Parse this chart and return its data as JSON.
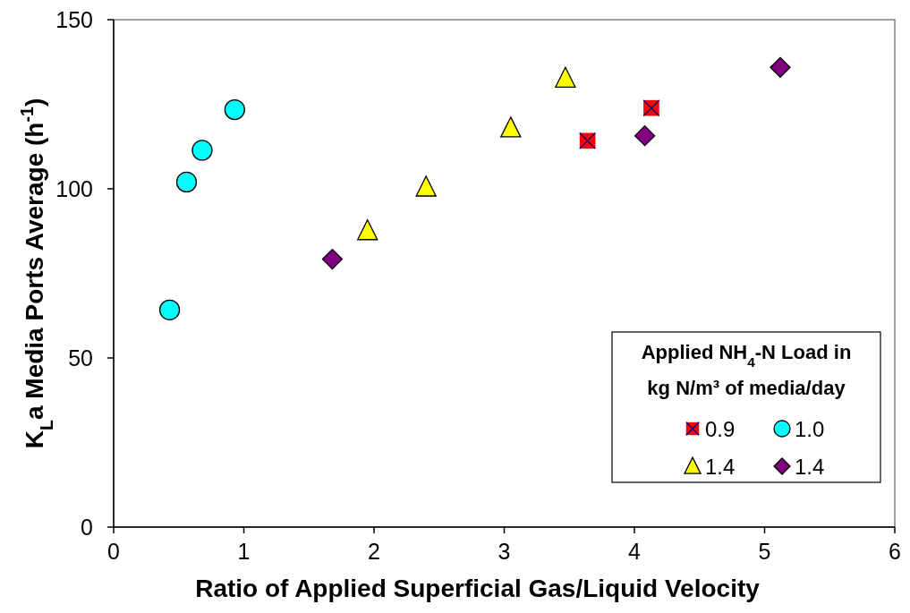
{
  "chart_data": {
    "type": "scatter",
    "xlabel": "Ratio of Applied Superficial Gas/Liquid Velocity",
    "ylabel": "K$_{L}$a Media Ports Average (h$^{-1}$)",
    "legend_title": "Applied NH$_{4}$-N Load in\nkg N/m³ of media/day",
    "xlim": [
      0,
      6
    ],
    "xticks": [
      0,
      1,
      2,
      3,
      4,
      5,
      6
    ],
    "ylim": [
      0,
      150
    ],
    "yticks": [
      0,
      50,
      100,
      150
    ],
    "grid": false,
    "legend": "bottom right",
    "series": [
      {
        "name": "0.9",
        "color": "#ff0000",
        "marker": "square",
        "x": [
          3.64,
          4.13
        ],
        "values": [
          114.2,
          123.9
        ]
      },
      {
        "name": "1.0",
        "color": "#00ffff",
        "marker": "circle",
        "x": [
          0.43,
          0.56,
          0.68,
          0.93
        ],
        "values": [
          64.2,
          102.0,
          111.4,
          123.4
        ]
      },
      {
        "name": "1.4",
        "color": "#ffff00",
        "marker": "triangle",
        "x": [
          1.95,
          2.4,
          3.05,
          3.47
        ],
        "values": [
          87.6,
          100.5,
          118.0,
          132.7
        ]
      },
      {
        "name": "1.4",
        "color": "#800080",
        "marker": "diamond",
        "x": [
          1.68,
          4.08,
          5.12
        ],
        "values": [
          79.2,
          115.7,
          135.9
        ]
      }
    ]
  }
}
